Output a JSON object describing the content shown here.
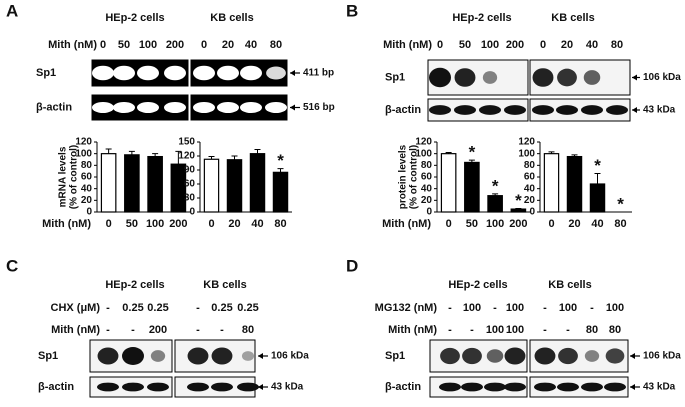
{
  "panels": [
    {
      "label": "A",
      "groups": [
        "HEp-2 cells",
        "KB cells"
      ],
      "treatments": [
        {
          "label": "Mith (nM)",
          "values": [
            [
              "0",
              "50",
              "100",
              "200"
            ],
            [
              "0",
              "20",
              "40",
              "80"
            ]
          ]
        }
      ],
      "blots": [
        {
          "label": "Sp1",
          "size": "411 bp"
        },
        {
          "label": "β-actin",
          "size": "516 bp"
        }
      ]
    },
    {
      "label": "B",
      "groups": [
        "HEp-2 cells",
        "KB cells"
      ],
      "treatments": [
        {
          "label": "Mith (nM)",
          "values": [
            [
              "0",
              "50",
              "100",
              "200"
            ],
            [
              "0",
              "20",
              "40",
              "80"
            ]
          ]
        }
      ],
      "blots": [
        {
          "label": "Sp1",
          "size": "106 kDa"
        },
        {
          "label": "β-actin",
          "size": "43 kDa"
        }
      ]
    },
    {
      "label": "C",
      "groups": [
        "HEp-2 cells",
        "KB cells"
      ],
      "treatments": [
        {
          "label": "CHX (μM)",
          "values": [
            [
              "-",
              "0.25",
              "0.25"
            ],
            [
              "-",
              "0.25",
              "0.25"
            ]
          ]
        },
        {
          "label": "Mith (nM)",
          "values": [
            [
              "-",
              "-",
              "200"
            ],
            [
              "-",
              "-",
              "80"
            ]
          ]
        }
      ],
      "blots": [
        {
          "label": "Sp1",
          "size": "106 kDa"
        },
        {
          "label": "β-actin",
          "size": "43 kDa"
        }
      ]
    },
    {
      "label": "D",
      "groups": [
        "HEp-2 cells",
        "KB cells"
      ],
      "treatments": [
        {
          "label": "MG132 (nM)",
          "values": [
            [
              "-",
              "100",
              "-",
              "100"
            ],
            [
              "-",
              "100",
              "-",
              "100"
            ]
          ]
        },
        {
          "label": "Mith (nM)",
          "values": [
            [
              "-",
              "-",
              "100",
              "100"
            ],
            [
              "-",
              "-",
              "80",
              "80"
            ]
          ]
        }
      ],
      "blots": [
        {
          "label": "Sp1",
          "size": "106 kDa"
        },
        {
          "label": "β-actin",
          "size": "43 kDa"
        }
      ]
    }
  ],
  "chart_data": [
    {
      "type": "bar",
      "y_label": [
        "mRNA levels",
        "(% of control)"
      ],
      "x_label": "Mith (nM)",
      "categories": [
        "0",
        "50",
        "100",
        "200"
      ],
      "values": [
        100,
        98,
        95,
        82
      ],
      "errors": [
        8,
        6,
        5,
        22
      ],
      "colors": [
        "#ffffff",
        "#000000",
        "#000000",
        "#000000"
      ],
      "markers": [
        null,
        null,
        null,
        null
      ],
      "ylim": [
        0,
        120
      ],
      "yticks": [
        0,
        20,
        40,
        60,
        80,
        100,
        120
      ]
    },
    {
      "type": "bar",
      "categories": [
        "0",
        "20",
        "40",
        "80"
      ],
      "values": [
        113,
        112,
        125,
        85
      ],
      "errors": [
        6,
        8,
        9,
        8
      ],
      "colors": [
        "#ffffff",
        "#000000",
        "#000000",
        "#000000"
      ],
      "markers": [
        null,
        null,
        null,
        "*"
      ],
      "ylim": [
        0,
        150
      ],
      "yticks": [
        0,
        30,
        60,
        90,
        120,
        150
      ]
    },
    {
      "type": "bar",
      "y_label": [
        "protein levels",
        "(% of control)"
      ],
      "x_label": "Mith (nM)",
      "categories": [
        "0",
        "50",
        "100",
        "200"
      ],
      "values": [
        100,
        85,
        28,
        5
      ],
      "errors": [
        2,
        4,
        3,
        1
      ],
      "colors": [
        "#ffffff",
        "#000000",
        "#000000",
        "#000000"
      ],
      "markers": [
        null,
        "*",
        "*",
        "*"
      ],
      "ylim": [
        0,
        120
      ],
      "yticks": [
        0,
        20,
        40,
        60,
        80,
        100,
        120
      ]
    },
    {
      "type": "bar",
      "categories": [
        "0",
        "20",
        "40",
        "80"
      ],
      "values": [
        100,
        95,
        48,
        0
      ],
      "errors": [
        3,
        3,
        18,
        0
      ],
      "colors": [
        "#ffffff",
        "#000000",
        "#000000",
        "#000000"
      ],
      "markers": [
        null,
        null,
        "*",
        "*"
      ],
      "ylim": [
        0,
        120
      ],
      "yticks": [
        0,
        20,
        40,
        60,
        80,
        100,
        120
      ]
    }
  ]
}
